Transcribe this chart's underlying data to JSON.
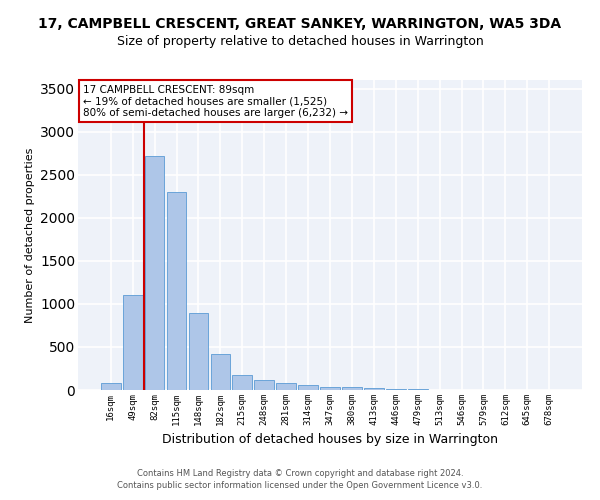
{
  "title": "17, CAMPBELL CRESCENT, GREAT SANKEY, WARRINGTON, WA5 3DA",
  "subtitle": "Size of property relative to detached houses in Warrington",
  "xlabel": "Distribution of detached houses by size in Warrington",
  "ylabel": "Number of detached properties",
  "categories": [
    "16sqm",
    "49sqm",
    "82sqm",
    "115sqm",
    "148sqm",
    "182sqm",
    "215sqm",
    "248sqm",
    "281sqm",
    "314sqm",
    "347sqm",
    "380sqm",
    "413sqm",
    "446sqm",
    "479sqm",
    "513sqm",
    "546sqm",
    "579sqm",
    "612sqm",
    "645sqm",
    "678sqm"
  ],
  "values": [
    80,
    1100,
    2720,
    2300,
    900,
    420,
    175,
    115,
    80,
    55,
    40,
    30,
    20,
    10,
    6,
    4,
    4,
    3,
    2,
    1,
    1
  ],
  "bar_color": "#aec6e8",
  "bar_edge_color": "#5b9bd5",
  "background_color": "#eef2f9",
  "grid_color": "#ffffff",
  "annotation_box_text": "17 CAMPBELL CRESCENT: 89sqm\n← 19% of detached houses are smaller (1,525)\n80% of semi-detached houses are larger (6,232) →",
  "annotation_box_color": "#ffffff",
  "annotation_box_edge_color": "#cc0000",
  "vline_x": 2,
  "vline_color": "#cc0000",
  "ylim": [
    0,
    3600
  ],
  "yticks": [
    0,
    500,
    1000,
    1500,
    2000,
    2500,
    3000,
    3500
  ],
  "title_fontsize": 10,
  "subtitle_fontsize": 9,
  "xlabel_fontsize": 9,
  "ylabel_fontsize": 8,
  "footer1": "Contains HM Land Registry data © Crown copyright and database right 2024.",
  "footer2": "Contains public sector information licensed under the Open Government Licence v3.0."
}
